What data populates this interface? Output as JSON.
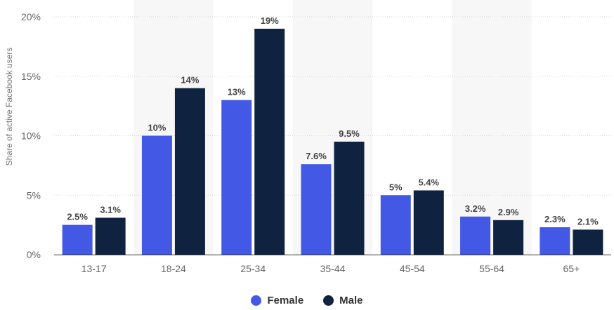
{
  "chart_data": {
    "type": "bar",
    "categories": [
      "13-17",
      "18-24",
      "25-34",
      "35-44",
      "45-54",
      "55-64",
      "65+"
    ],
    "series": [
      {
        "name": "Female",
        "color": "#4358e4",
        "values": [
          2.5,
          10,
          13,
          7.6,
          5,
          3.2,
          2.3
        ],
        "labels": [
          "2.5%",
          "10%",
          "13%",
          "7.6%",
          "5%",
          "3.2%",
          "2.3%"
        ]
      },
      {
        "name": "Male",
        "color": "#0f2341",
        "values": [
          3.1,
          14,
          19,
          9.5,
          5.4,
          2.9,
          2.1
        ],
        "labels": [
          "3.1%",
          "14%",
          "19%",
          "9.5%",
          "5.4%",
          "2.9%",
          "2.1%"
        ]
      }
    ],
    "yticks": [
      0,
      5,
      10,
      15,
      20
    ],
    "ytick_labels": [
      "0%",
      "5%",
      "10%",
      "15%",
      "20%"
    ],
    "ylim": [
      0,
      20
    ],
    "ylabel": "Share of active Facebook users",
    "xlabel": "",
    "title": "",
    "grid": true,
    "legend_position": "bottom-center"
  }
}
